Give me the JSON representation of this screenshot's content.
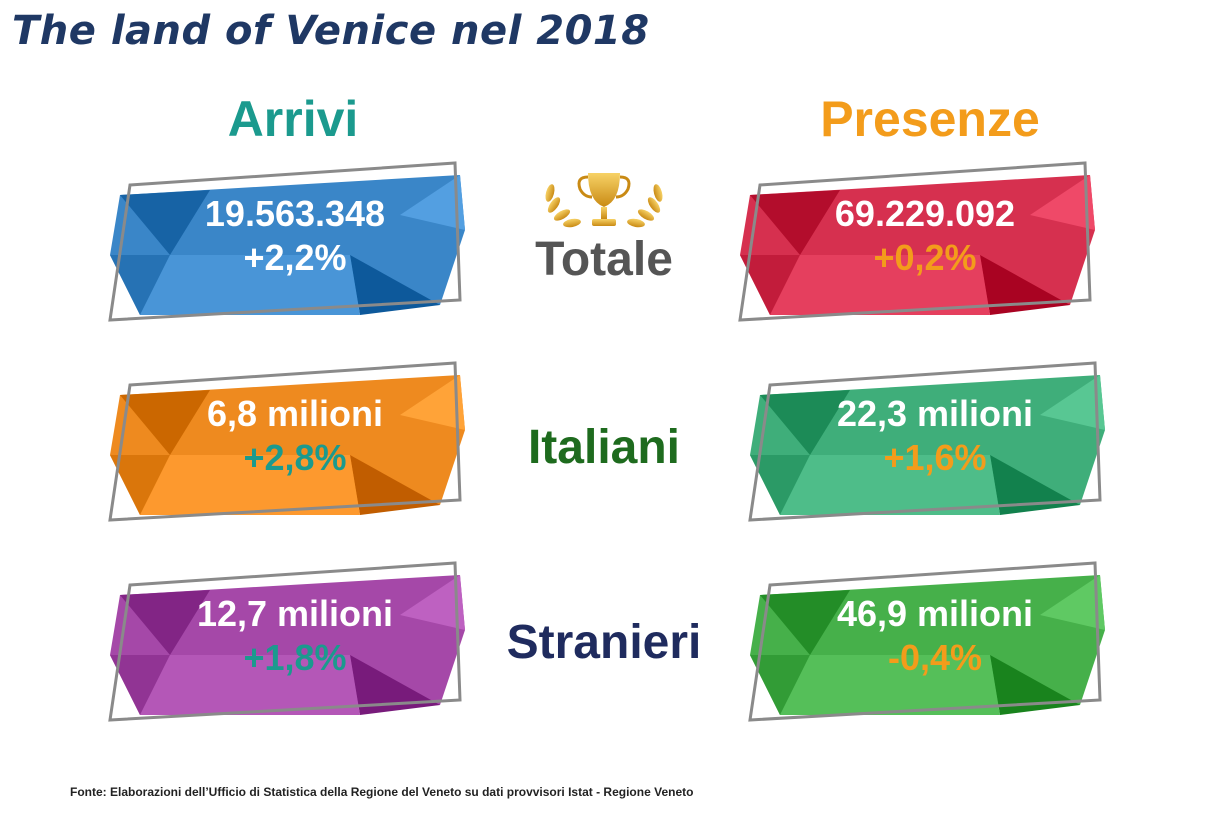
{
  "title": "The land of Venice nel 2018",
  "columns": {
    "arrivi": "Arrivi",
    "presenze": "Presenze"
  },
  "rows": [
    {
      "label": "Totale",
      "arrivi": {
        "value": "19.563.348",
        "change": "+2,2%"
      },
      "presenze": {
        "value": "69.229.092",
        "change": "+0,2%"
      }
    },
    {
      "label": "Italiani",
      "arrivi": {
        "value": "6,8 milioni",
        "change": "+2,8%"
      },
      "presenze": {
        "value": "22,3 milioni",
        "change": "+1,6%"
      }
    },
    {
      "label": "Stranieri",
      "arrivi": {
        "value": "12,7 milioni",
        "change": "+1,8%"
      },
      "presenze": {
        "value": "46,9 milioni",
        "change": "-0,4%"
      }
    }
  ],
  "colors": {
    "title": "#1f3864",
    "arrivi_heading": "#1b9a8e",
    "presenze_heading": "#f39c1b",
    "card_totale_arrivi": "#3a86c8",
    "card_totale_presenze": "#d6304f",
    "card_italiani_arrivi": "#ee8a1f",
    "card_italiani_presenze": "#3fae7a",
    "card_stranieri_arrivi": "#a548a8",
    "card_stranieri_presenze": "#46b04a",
    "change_teal": "#1b9a8e",
    "change_orange": "#f39c1b",
    "change_white": "#ffffff"
  },
  "icons": {
    "trophy": "trophy-laurel-icon"
  },
  "footer": "Fonte: Elaborazioni dell’Ufficio di Statistica della Regione del Veneto su dati provvisori Istat - Regione Veneto"
}
